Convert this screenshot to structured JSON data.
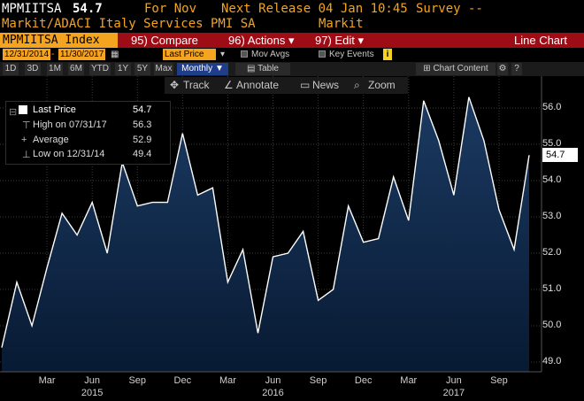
{
  "header": {
    "ticker": "MPMIITSA",
    "last": "54.7",
    "for_label": "For Nov",
    "next_release": "Next Release 04 Jan 10:45",
    "survey": "Survey --",
    "description": "Markit/ADACI Italy Services PMI SA",
    "source": "Markit"
  },
  "command_bar": {
    "security": "MPMIITSA Index",
    "compare_num": "95)",
    "compare": "Compare",
    "actions_num": "96)",
    "actions": "Actions",
    "edit_num": "97)",
    "edit": "Edit",
    "chart_title": "Line Chart"
  },
  "date_row": {
    "start_date": "12/31/2014",
    "end_date": "11/30/2017",
    "field": "Last Price",
    "mov_avgs": "Mov Avgs",
    "key_events": "Key Events",
    "chart_content": "Chart Content"
  },
  "periods": [
    "1D",
    "3D",
    "1M",
    "6M",
    "YTD",
    "1Y",
    "5Y",
    "Max"
  ],
  "frequency": "Monthly",
  "table_label": "Table",
  "toolbar": {
    "track": "Track",
    "annotate": "Annotate",
    "news": "News",
    "zoom": "Zoom"
  },
  "legend": {
    "last_label": "Last Price",
    "last_value": "54.7",
    "high_label": "High on 07/31/17",
    "high_value": "56.3",
    "avg_label": "Average",
    "avg_value": "52.9",
    "low_label": "Low on 12/31/14",
    "low_value": "49.4"
  },
  "colors": {
    "accent_orange": "#f5a41f",
    "command_red": "#9e0d16",
    "series_line": "#ffffff",
    "area_fill_top": "#1b3a62",
    "area_fill_bottom": "#081a33"
  },
  "chart_data": {
    "type": "area",
    "title": "",
    "xlabel": "",
    "ylabel": "",
    "x": [
      "2014-12",
      "2015-01",
      "2015-02",
      "2015-03",
      "2015-04",
      "2015-05",
      "2015-06",
      "2015-07",
      "2015-08",
      "2015-09",
      "2015-10",
      "2015-11",
      "2015-12",
      "2016-01",
      "2016-02",
      "2016-03",
      "2016-04",
      "2016-05",
      "2016-06",
      "2016-07",
      "2016-08",
      "2016-09",
      "2016-10",
      "2016-11",
      "2016-12",
      "2017-01",
      "2017-02",
      "2017-03",
      "2017-04",
      "2017-05",
      "2017-06",
      "2017-07",
      "2017-08",
      "2017-09",
      "2017-10",
      "2017-11"
    ],
    "series": [
      {
        "name": "Last Price",
        "values": [
          49.4,
          51.2,
          50.0,
          51.6,
          53.1,
          52.5,
          53.4,
          52.0,
          54.5,
          53.3,
          53.4,
          53.4,
          55.3,
          53.6,
          53.8,
          51.2,
          52.1,
          49.8,
          51.9,
          52.0,
          52.6,
          50.7,
          51.0,
          53.3,
          52.3,
          52.4,
          54.1,
          52.9,
          56.2,
          55.1,
          53.6,
          56.3,
          55.1,
          53.2,
          52.1,
          54.7
        ]
      }
    ],
    "ylim": [
      48.6,
      56.6
    ],
    "yticks": [
      "56.0",
      "55.0",
      "54.0",
      "53.0",
      "52.0",
      "51.0",
      "50.0",
      "49.0"
    ],
    "xticks": [
      {
        "label": "Mar",
        "month": "2015-03"
      },
      {
        "label": "Jun",
        "month": "2015-06"
      },
      {
        "label": "Sep",
        "month": "2015-09"
      },
      {
        "label": "Dec",
        "month": "2015-12"
      },
      {
        "label": "Mar",
        "month": "2016-03"
      },
      {
        "label": "Jun",
        "month": "2016-06"
      },
      {
        "label": "Sep",
        "month": "2016-09"
      },
      {
        "label": "Dec",
        "month": "2016-12"
      },
      {
        "label": "Mar",
        "month": "2017-03"
      },
      {
        "label": "Jun",
        "month": "2017-06"
      },
      {
        "label": "Sep",
        "month": "2017-09"
      }
    ],
    "year_labels": [
      {
        "label": "2015",
        "month": "2015-06"
      },
      {
        "label": "2016",
        "month": "2016-06"
      },
      {
        "label": "2017",
        "month": "2017-06"
      }
    ],
    "last_value_label": "54.7",
    "grid": true
  }
}
